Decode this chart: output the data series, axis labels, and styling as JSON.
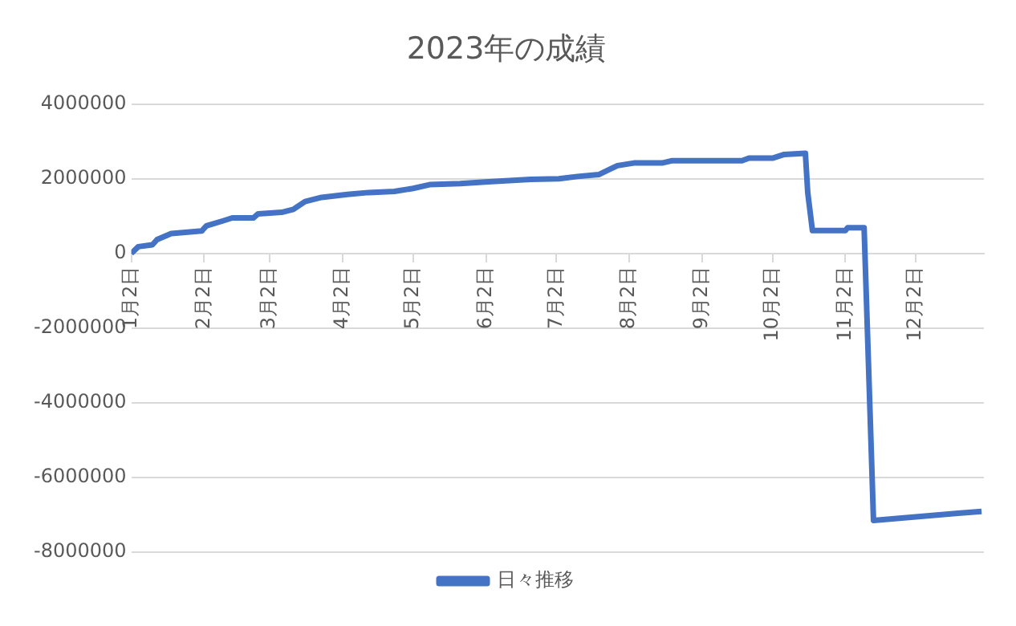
{
  "chart_data": {
    "type": "line",
    "title": "2023年の成績",
    "x": [
      "2023-01-02",
      "2023-01-05",
      "2023-01-11",
      "2023-01-13",
      "2023-01-19",
      "2023-02-01",
      "2023-02-03",
      "2023-02-10",
      "2023-02-14",
      "2023-02-23",
      "2023-02-25",
      "2023-03-07",
      "2023-03-12",
      "2023-03-17",
      "2023-03-24",
      "2023-04-04",
      "2023-04-13",
      "2023-04-24",
      "2023-05-02",
      "2023-05-09",
      "2023-05-22",
      "2023-06-03",
      "2023-06-21",
      "2023-07-03",
      "2023-07-11",
      "2023-07-20",
      "2023-07-28",
      "2023-08-04",
      "2023-08-16",
      "2023-08-20",
      "2023-09-19",
      "2023-09-22",
      "2023-10-02",
      "2023-10-07",
      "2023-10-16",
      "2023-10-17",
      "2023-10-19",
      "2023-11-02",
      "2023-11-03",
      "2023-11-10",
      "2023-11-14",
      "2023-11-29",
      "2023-12-20",
      "2023-12-30"
    ],
    "series": [
      {
        "name": "日々推移",
        "color": "#4472c4",
        "values": [
          0,
          180000,
          230000,
          370000,
          530000,
          600000,
          740000,
          870000,
          950000,
          950000,
          1060000,
          1100000,
          1180000,
          1390000,
          1500000,
          1580000,
          1630000,
          1660000,
          1740000,
          1840000,
          1870000,
          1920000,
          1980000,
          2000000,
          2060000,
          2110000,
          2350000,
          2420000,
          2420000,
          2480000,
          2480000,
          2550000,
          2550000,
          2650000,
          2680000,
          1630000,
          610000,
          610000,
          690000,
          690000,
          -7150000,
          -7070000,
          -6960000,
          -6910000
        ]
      }
    ],
    "xlim": [
      "2023-01-02",
      "2023-12-31"
    ],
    "xticks": [
      {
        "value": "2023-01-02",
        "label": "1月2日"
      },
      {
        "value": "2023-02-02",
        "label": "2月2日"
      },
      {
        "value": "2023-03-02",
        "label": "3月2日"
      },
      {
        "value": "2023-04-02",
        "label": "4月2日"
      },
      {
        "value": "2023-05-02",
        "label": "5月2日"
      },
      {
        "value": "2023-06-02",
        "label": "6月2日"
      },
      {
        "value": "2023-07-02",
        "label": "7月2日"
      },
      {
        "value": "2023-08-02",
        "label": "8月2日"
      },
      {
        "value": "2023-09-02",
        "label": "9月2日"
      },
      {
        "value": "2023-10-02",
        "label": "10月2日"
      },
      {
        "value": "2023-11-02",
        "label": "11月2日"
      },
      {
        "value": "2023-12-02",
        "label": "12月2日"
      }
    ],
    "ylim": [
      -8000000,
      4000000
    ],
    "yticks": [
      -8000000,
      -6000000,
      -4000000,
      -2000000,
      0,
      2000000,
      4000000
    ],
    "grid": "y",
    "legend": "bottom",
    "marker": "none",
    "line_style": "solid"
  }
}
